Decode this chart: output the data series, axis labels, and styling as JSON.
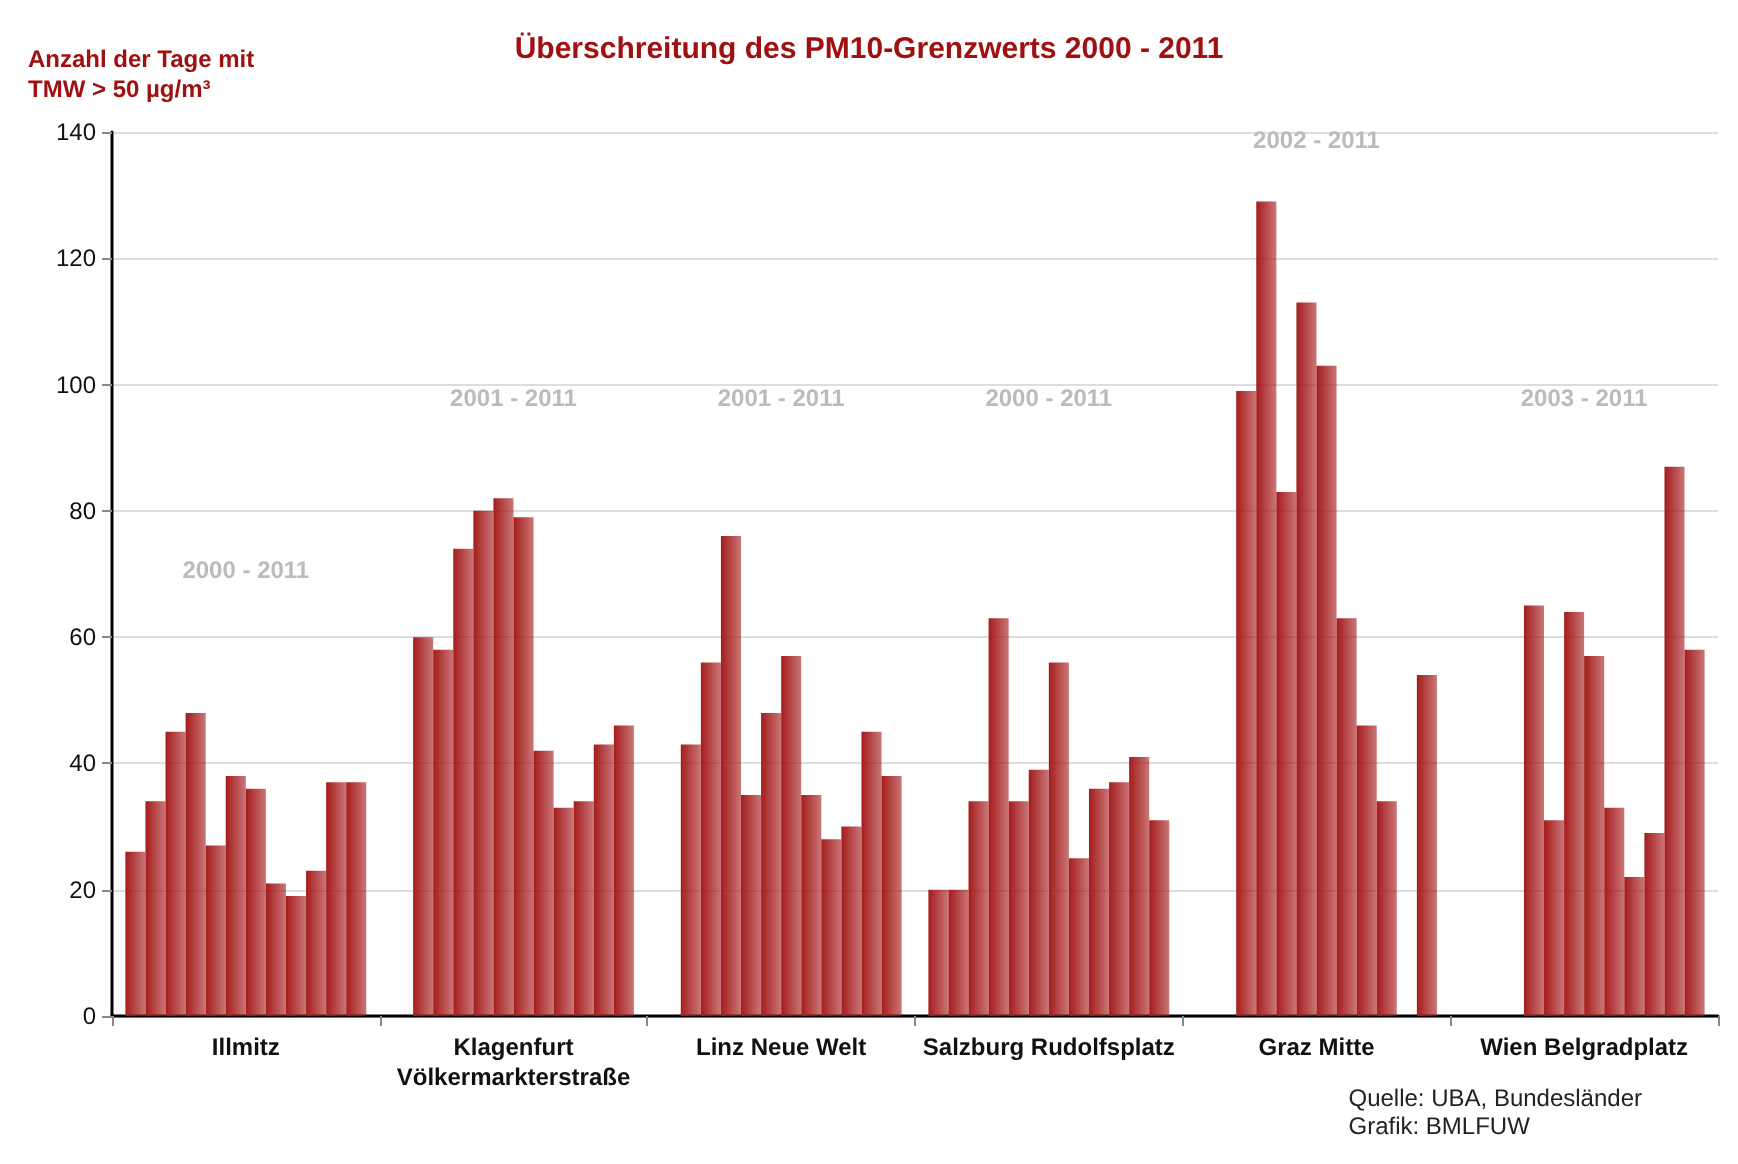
{
  "chart_data": {
    "type": "bar",
    "title": "Überschreitung des PM10-Grenzwerts 2000 - 2011",
    "ylabel": "Anzahl der Tage mit\nTMW > 50 µg/m³",
    "categories": [
      "Illmitz",
      "Klagenfurt\nVölkermarkterstraße",
      "Linz Neue Welt",
      "Salzburg Rudolfsplatz",
      "Graz Mitte",
      "Wien Belgradplatz"
    ],
    "series": [
      {
        "color": "#a51c1c",
        "values": [
          26,
          null,
          null,
          20,
          null,
          null
        ]
      },
      {
        "color": "#a51c1c",
        "values": [
          34,
          60,
          43,
          20,
          null,
          null
        ]
      },
      {
        "color": "#a51c1c",
        "values": [
          45,
          58,
          56,
          34,
          99,
          null
        ]
      },
      {
        "color": "#a51c1c",
        "values": [
          48,
          74,
          76,
          63,
          129,
          65
        ]
      },
      {
        "color": "#a51c1c",
        "values": [
          27,
          80,
          35,
          34,
          83,
          31
        ]
      },
      {
        "color": "#a51c1c",
        "values": [
          38,
          82,
          48,
          39,
          113,
          64
        ]
      },
      {
        "color": "#a51c1c",
        "values": [
          36,
          79,
          57,
          56,
          103,
          57
        ]
      },
      {
        "color": "#a51c1c",
        "values": [
          21,
          42,
          35,
          25,
          63,
          33
        ]
      },
      {
        "color": "#a51c1c",
        "values": [
          19,
          33,
          28,
          36,
          46,
          22
        ]
      },
      {
        "color": "#a51c1c",
        "values": [
          23,
          34,
          30,
          37,
          34,
          29
        ]
      },
      {
        "color": "#a51c1c",
        "values": [
          37,
          43,
          45,
          41,
          null,
          87
        ]
      },
      {
        "color": "#a51c1c",
        "values": [
          37,
          46,
          38,
          31,
          54,
          58
        ]
      }
    ],
    "ylim": [
      0,
      140
    ],
    "yticks": [
      0,
      20,
      40,
      60,
      80,
      100,
      120,
      140
    ],
    "grid": "y",
    "annotations": [
      "2000 - 2011",
      "2001 - 2011",
      "2001 - 2011",
      "2000 - 2011",
      "2002 - 2011",
      "2003 - 2011",
      "Quelle: UBA, Bundesländer\nGrafik: BMLFUW"
    ]
  }
}
